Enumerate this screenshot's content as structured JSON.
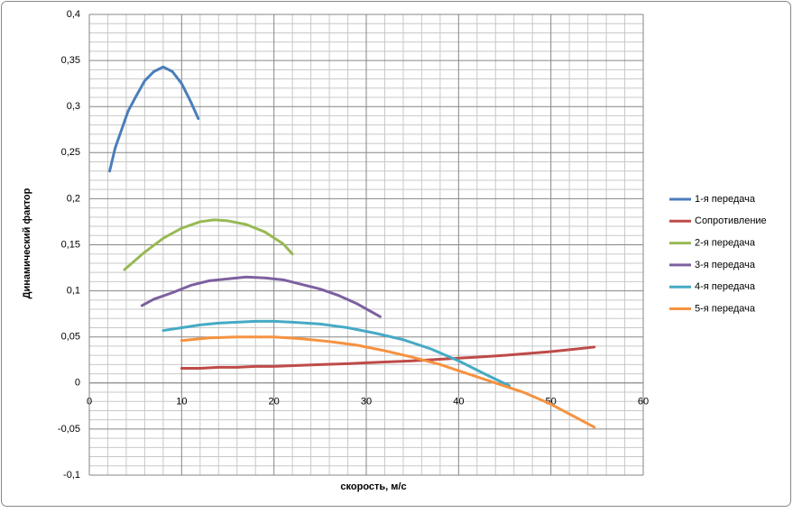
{
  "chart_data": {
    "type": "line",
    "xlabel": "скорость, м/с",
    "ylabel": "Динамический фактор",
    "xlim": [
      0,
      60
    ],
    "xticks": [
      0,
      10,
      20,
      30,
      40,
      50,
      60
    ],
    "ylim": [
      -0.1,
      0.4
    ],
    "yticks": [
      {
        "value": -0.1,
        "label": "-0,1"
      },
      {
        "value": -0.05,
        "label": "-0,05"
      },
      0,
      {
        "value": 0.05,
        "label": "0,05"
      },
      {
        "value": 0.1,
        "label": "0,1"
      },
      {
        "value": 0.15,
        "label": "0,15"
      },
      {
        "value": 0.2,
        "label": "0,2"
      },
      {
        "value": 0.25,
        "label": "0,25"
      },
      {
        "value": 0.3,
        "label": "0,3"
      },
      {
        "value": 0.35,
        "label": "0,35"
      },
      {
        "value": 0.4,
        "label": "0,4"
      }
    ],
    "grid": true,
    "legend": "right",
    "series": [
      {
        "name": "1-я передача",
        "color": "#4a7ebb",
        "x": [
          2.2,
          2.8,
          3.5,
          4.2,
          5,
          6,
          7,
          8,
          9,
          10,
          11,
          11.8
        ],
        "values": [
          0.23,
          0.255,
          0.275,
          0.295,
          0.31,
          0.328,
          0.338,
          0.343,
          0.338,
          0.325,
          0.305,
          0.287
        ]
      },
      {
        "name": "Сопротивление",
        "color": "#be4b48",
        "x": [
          10,
          12,
          14,
          16,
          18,
          20,
          25,
          28,
          30,
          35,
          40,
          42,
          45,
          50,
          54.7
        ],
        "values": [
          0.016,
          0.016,
          0.017,
          0.017,
          0.018,
          0.018,
          0.02,
          0.021,
          0.022,
          0.024,
          0.027,
          0.028,
          0.03,
          0.034,
          0.039
        ]
      },
      {
        "name": "2-я передача",
        "color": "#98b954",
        "x": [
          3.8,
          6,
          8,
          10,
          12,
          13.5,
          15,
          17,
          19,
          21,
          22
        ],
        "values": [
          0.123,
          0.142,
          0.157,
          0.168,
          0.175,
          0.177,
          0.176,
          0.172,
          0.164,
          0.151,
          0.14
        ]
      },
      {
        "name": "3-я передача",
        "color": "#7d60a0",
        "x": [
          5.7,
          7,
          9,
          11,
          13,
          15,
          17,
          19,
          21,
          23,
          25,
          27,
          29,
          31.5
        ],
        "values": [
          0.084,
          0.091,
          0.098,
          0.106,
          0.111,
          0.113,
          0.115,
          0.114,
          0.112,
          0.107,
          0.102,
          0.095,
          0.086,
          0.072
        ]
      },
      {
        "name": "4-я передача",
        "color": "#46aac5",
        "x": [
          8,
          10,
          12,
          14,
          16,
          18,
          20,
          22,
          25,
          28,
          31,
          34,
          37,
          40,
          43,
          45.5
        ],
        "values": [
          0.057,
          0.06,
          0.063,
          0.065,
          0.066,
          0.067,
          0.067,
          0.066,
          0.064,
          0.06,
          0.054,
          0.047,
          0.037,
          0.024,
          0.009,
          -0.003
        ]
      },
      {
        "name": "5-я передача",
        "color": "#f69240",
        "x": [
          10,
          13,
          16,
          20,
          23,
          26,
          29,
          32,
          35,
          38,
          41,
          44,
          47,
          50,
          54.7
        ],
        "values": [
          0.046,
          0.049,
          0.05,
          0.05,
          0.048,
          0.045,
          0.041,
          0.035,
          0.028,
          0.02,
          0.01,
          0.0,
          -0.01,
          -0.023,
          -0.048
        ]
      }
    ]
  }
}
